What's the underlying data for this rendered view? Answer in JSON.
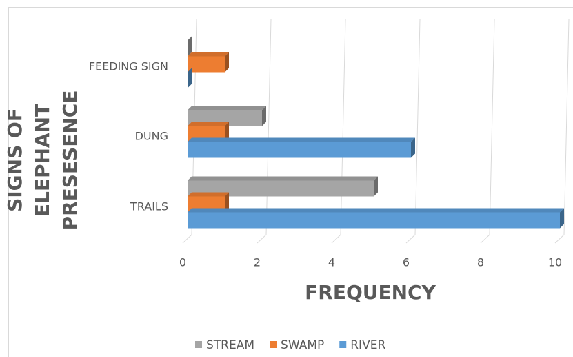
{
  "chart_data": {
    "type": "bar3d_horizontal",
    "xlabel": "FREQUENCY",
    "ylabel": "SIGNS OF ELEPHANT PRESESENCE",
    "categories": [
      "TRAILS",
      "DUNG",
      "FEEDING SIGN"
    ],
    "series": [
      {
        "name": "STREAM",
        "color": "#a5a5a5",
        "values": [
          5,
          2,
          0
        ]
      },
      {
        "name": "SWAMP",
        "color": "#ed7d31",
        "values": [
          1,
          1,
          1
        ]
      },
      {
        "name": "RIVER",
        "color": "#5b9bd5",
        "values": [
          10,
          6,
          0
        ]
      }
    ],
    "xlim": [
      0,
      10
    ],
    "xticks": [
      0,
      2,
      4,
      6,
      8,
      10
    ],
    "grid": true,
    "legend": "bottom"
  }
}
